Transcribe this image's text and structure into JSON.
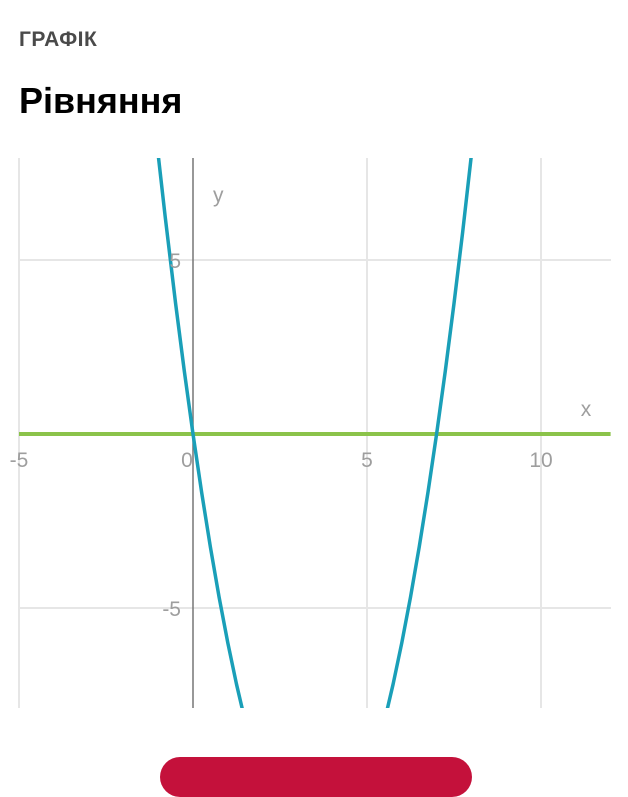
{
  "header": {
    "section_label": "ГРАФІК",
    "title": "Рівняння"
  },
  "chart_data": {
    "type": "line",
    "title": "",
    "xlabel": "x",
    "ylabel": "y",
    "xlim": [
      -5,
      12
    ],
    "ylim": [
      -7.9,
      7.9
    ],
    "grid": true,
    "x_ticks": [
      -5,
      0,
      5,
      10
    ],
    "x_tick_labels": [
      "-5",
      "0",
      "5",
      "10"
    ],
    "y_ticks": [
      5,
      -5
    ],
    "y_tick_labels": [
      "5",
      "-5"
    ],
    "series": [
      {
        "color": "#1a9fb8",
        "x": [
          -1.05,
          -0.8,
          -0.5,
          -0.25,
          0,
          0.25,
          0.5,
          0.75,
          1,
          1.25,
          1.45,
          5.55,
          5.75,
          6,
          6.25,
          6.5,
          6.75,
          7,
          7.25,
          7.5,
          7.75,
          8.05
        ],
        "y": [
          8.45,
          6.24,
          3.75,
          1.81,
          0,
          -1.69,
          -3.25,
          -4.69,
          -6,
          -7.19,
          -8.05,
          -8.05,
          -7.19,
          -6,
          -4.69,
          -3.25,
          -1.69,
          0,
          1.81,
          3.75,
          5.81,
          8.45
        ]
      },
      {
        "color": "#8bc34a",
        "x": [
          -5,
          12
        ],
        "y": [
          0,
          0
        ]
      }
    ]
  },
  "colors": {
    "button": "#c4113b",
    "grid": "#e6e6e6",
    "axis": "#777777"
  }
}
